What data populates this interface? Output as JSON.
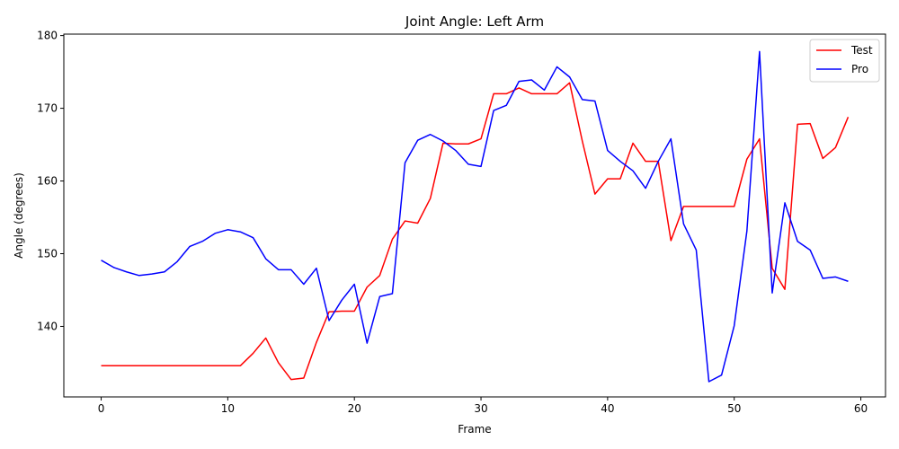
{
  "chart_data": {
    "type": "line",
    "title": "Joint Angle: Left Arm",
    "xlabel": "Frame",
    "ylabel": "Angle (degrees)",
    "xlim": [
      -2.95,
      61.95
    ],
    "ylim": [
      130.3,
      180.2
    ],
    "xticks": [
      0,
      10,
      20,
      30,
      40,
      50,
      60
    ],
    "yticks": [
      140,
      150,
      160,
      170,
      180
    ],
    "grid": false,
    "legend_position": "top-right",
    "x": [
      0,
      1,
      2,
      3,
      4,
      5,
      6,
      7,
      8,
      9,
      10,
      11,
      12,
      13,
      14,
      15,
      16,
      17,
      18,
      19,
      20,
      21,
      22,
      23,
      24,
      25,
      26,
      27,
      28,
      29,
      30,
      31,
      32,
      33,
      34,
      35,
      36,
      37,
      38,
      39,
      40,
      41,
      42,
      43,
      44,
      45,
      46,
      47,
      48,
      49,
      50,
      51,
      52,
      53,
      54,
      55,
      56,
      57,
      58,
      59
    ],
    "series": [
      {
        "name": "Test",
        "color": "#ff0000",
        "values": [
          134.6,
          134.6,
          134.6,
          134.6,
          134.6,
          134.6,
          134.6,
          134.6,
          134.6,
          134.6,
          134.6,
          134.6,
          136.3,
          138.4,
          135.0,
          132.7,
          132.9,
          137.8,
          142.0,
          142.1,
          142.1,
          145.4,
          147.0,
          152.0,
          154.5,
          154.2,
          157.6,
          165.2,
          165.1,
          165.1,
          165.8,
          172.0,
          172.0,
          172.8,
          172.0,
          172.0,
          172.0,
          173.5,
          165.5,
          158.2,
          160.3,
          160.3,
          165.2,
          162.7,
          162.7,
          151.8,
          156.5,
          156.5,
          156.5,
          156.5,
          156.5,
          163.0,
          165.8,
          148.0,
          145.1,
          167.8,
          167.9,
          163.1,
          164.6,
          168.8
        ]
      },
      {
        "name": "Pro",
        "color": "#0000ff",
        "values": [
          149.1,
          148.1,
          147.5,
          147.0,
          147.2,
          147.5,
          148.9,
          151.0,
          151.7,
          152.8,
          153.3,
          153.0,
          152.2,
          149.3,
          147.8,
          147.8,
          145.8,
          148.0,
          140.8,
          143.6,
          145.8,
          137.7,
          144.1,
          144.5,
          162.5,
          165.6,
          166.4,
          165.5,
          164.2,
          162.3,
          162.0,
          169.7,
          170.4,
          173.7,
          173.9,
          172.5,
          175.7,
          174.3,
          171.2,
          171.0,
          164.2,
          162.7,
          161.4,
          159.0,
          162.7,
          165.8,
          154.1,
          150.5,
          132.4,
          133.3,
          140.1,
          153.1,
          177.8,
          144.6,
          157.0,
          151.7,
          150.5,
          146.6,
          146.8,
          146.2
        ]
      }
    ]
  }
}
